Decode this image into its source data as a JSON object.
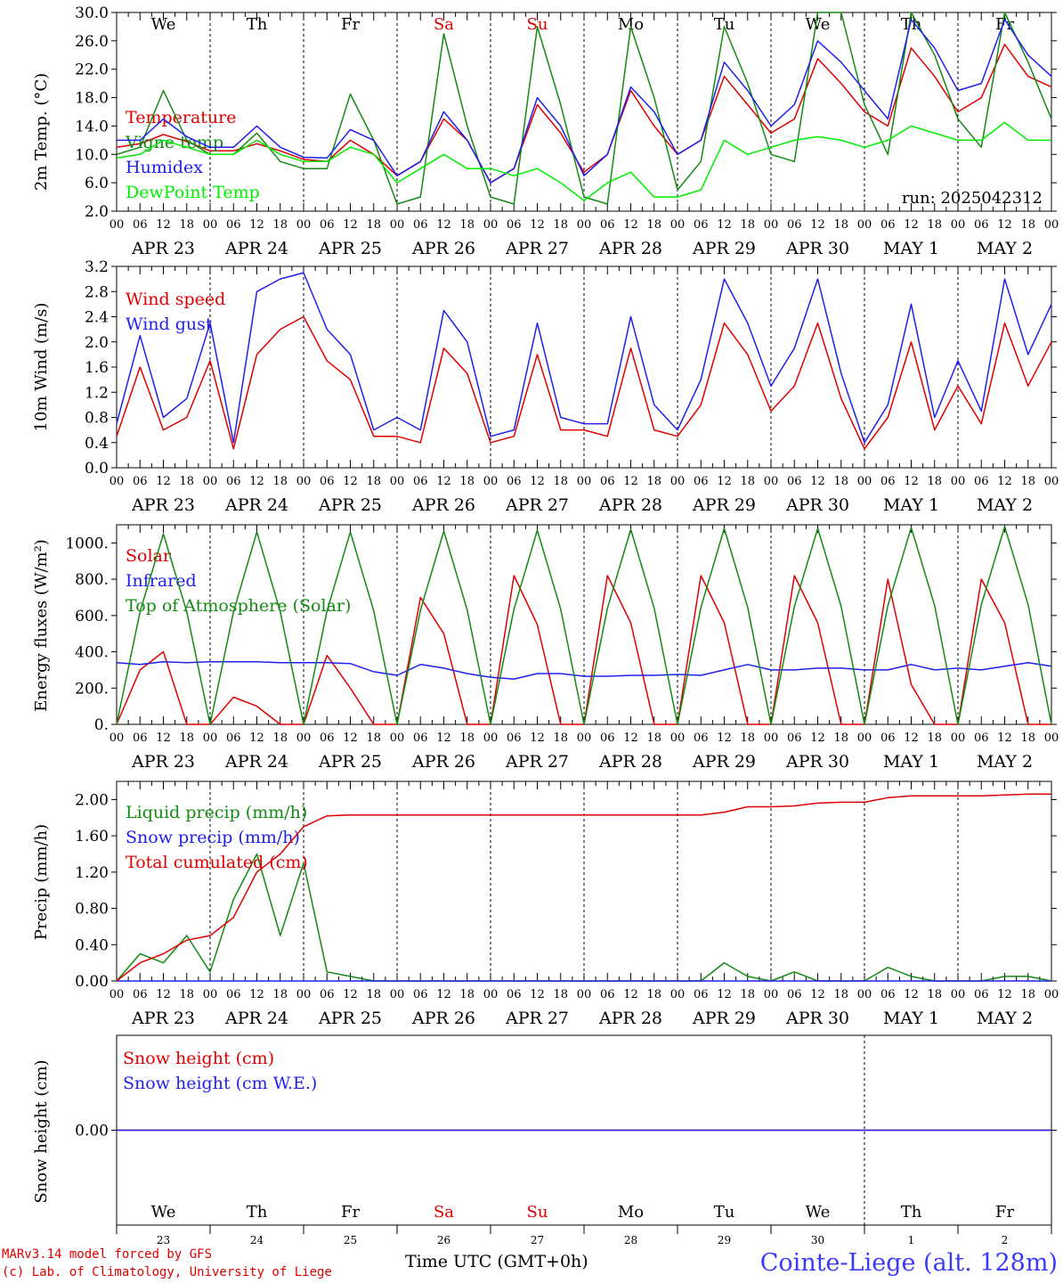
{
  "footer": {
    "model": "MARv3.14 model forced by GFS",
    "lab": "(c) Lab. of Climatology, University of Liege",
    "time_label": "Time UTC (GMT+0h)",
    "station": "Cointe-Liege (alt. 128m)"
  },
  "run_label": "run: 2025042312",
  "days": [
    "We",
    "Th",
    "Fr",
    "Sa",
    "Su",
    "Mo",
    "Tu",
    "We",
    "Th",
    "Fr"
  ],
  "day_colors": [
    "#000000",
    "#000000",
    "#000000",
    "#e00000",
    "#e00000",
    "#000000",
    "#000000",
    "#000000",
    "#000000",
    "#000000"
  ],
  "date_labels": [
    "APR 23",
    "APR 24",
    "APR 25",
    "APR 26",
    "APR 27",
    "APR 28",
    "APR 29",
    "APR 30",
    "MAY  1",
    "MAY  2"
  ],
  "day_numbers": [
    "23",
    "24",
    "25",
    "26",
    "27",
    "28",
    "29",
    "30",
    "1",
    "2"
  ],
  "hour_ticks": [
    "00",
    "06",
    "12",
    "18"
  ],
  "chart_data": [
    {
      "type": "line",
      "id": "temperature",
      "ylabel": "2m Temp. (°C)",
      "ylim": [
        2,
        30
      ],
      "yticks": [
        "2.0",
        "6.0",
        "10.0",
        "14.0",
        "18.0",
        "22.0",
        "26.0",
        "30.0"
      ],
      "x": "hours since APR 23 00 UTC, step 6",
      "series": [
        {
          "name": "Temperature",
          "color": "#e00000",
          "values": [
            11,
            11.5,
            12.8,
            11.8,
            10.5,
            10.5,
            11.5,
            10.5,
            9.3,
            9.0,
            12.0,
            10.0,
            7.0,
            9.0,
            15.0,
            12.0,
            6.0,
            8.0,
            17.0,
            13.0,
            7.5,
            10.0,
            19.0,
            14.0,
            10.0,
            12.0,
            21.0,
            17.0,
            13.0,
            15.0,
            23.5,
            20.0,
            16.0,
            14.0,
            25.0,
            21.0,
            16.0,
            18.0,
            25.5,
            21.0,
            19.5
          ]
        },
        {
          "name": "Vigne temp",
          "color": "#138a13",
          "values": [
            10,
            11,
            19,
            12,
            10,
            10,
            13,
            9,
            8.0,
            8,
            18.5,
            12,
            3,
            4,
            27,
            14,
            4,
            3,
            28,
            17,
            4,
            3,
            28,
            18,
            5,
            9,
            28,
            20,
            10,
            9,
            30,
            30,
            17,
            10,
            30,
            24,
            15,
            11,
            30,
            23,
            15
          ]
        },
        {
          "name": "Humidex",
          "color": "#2020ee",
          "values": [
            12,
            12,
            15,
            12.5,
            11,
            11,
            14,
            11,
            9.6,
            9.5,
            13.5,
            12,
            7,
            9,
            16,
            12,
            6,
            8,
            18,
            14,
            7,
            10,
            19.5,
            16,
            10,
            12,
            23,
            19,
            14,
            17,
            26,
            23,
            19,
            15,
            29,
            25,
            19,
            20,
            29,
            24,
            21
          ]
        },
        {
          "name": "DewPoint Temp",
          "color": "#00ee00",
          "values": [
            9.5,
            10,
            12,
            11,
            10,
            10,
            12,
            10,
            9,
            9,
            11,
            10,
            6,
            8,
            10,
            8,
            8,
            7,
            8,
            6,
            3.5,
            6,
            7.5,
            4,
            4,
            5,
            12,
            10,
            11,
            12,
            12.5,
            12,
            11,
            12,
            14,
            13,
            12,
            12,
            14.5,
            12,
            12
          ]
        }
      ]
    },
    {
      "type": "line",
      "id": "wind",
      "ylabel": "10m Wind (m/s)",
      "ylim": [
        0,
        3.2
      ],
      "yticks": [
        "0.0",
        "0.4",
        "0.8",
        "1.2",
        "1.6",
        "2.0",
        "2.4",
        "2.8",
        "3.2"
      ],
      "series": [
        {
          "name": "Wind speed",
          "color": "#e00000",
          "values": [
            0.5,
            1.6,
            0.6,
            0.8,
            1.7,
            0.3,
            1.8,
            2.2,
            2.4,
            1.7,
            1.4,
            0.5,
            0.5,
            0.4,
            1.9,
            1.5,
            0.4,
            0.5,
            1.8,
            0.6,
            0.6,
            0.5,
            1.9,
            0.6,
            0.5,
            1.0,
            2.3,
            1.8,
            0.9,
            1.3,
            2.3,
            1.1,
            0.3,
            0.8,
            2.0,
            0.6,
            1.3,
            0.7,
            2.3,
            1.3,
            2.0
          ]
        },
        {
          "name": "Wind gust",
          "color": "#2020ee",
          "values": [
            0.7,
            2.1,
            0.8,
            1.1,
            2.3,
            0.4,
            2.8,
            3.0,
            3.1,
            2.2,
            1.8,
            0.6,
            0.8,
            0.6,
            2.5,
            2.0,
            0.5,
            0.6,
            2.3,
            0.8,
            0.7,
            0.7,
            2.4,
            1.0,
            0.6,
            1.4,
            3.0,
            2.3,
            1.3,
            1.9,
            3.0,
            1.5,
            0.4,
            1.0,
            2.6,
            0.8,
            1.7,
            0.9,
            3.0,
            1.8,
            2.6
          ]
        }
      ]
    },
    {
      "type": "line",
      "id": "energy",
      "ylabel": "Energy fluxes (W/m²)",
      "ylim": [
        0,
        1100
      ],
      "yticks": [
        "0.",
        "200.",
        "400.",
        "600.",
        "800.",
        "1000."
      ],
      "series": [
        {
          "name": "Solar",
          "color": "#e00000",
          "values": [
            0,
            300,
            400,
            0,
            0,
            150,
            100,
            0,
            0,
            380,
            200,
            0,
            0,
            700,
            500,
            0,
            0,
            820,
            550,
            0,
            0,
            820,
            560,
            0,
            0,
            820,
            560,
            0,
            0,
            820,
            560,
            0,
            0,
            800,
            220,
            0,
            0,
            800,
            560,
            0,
            0
          ]
        },
        {
          "name": "Infrared",
          "color": "#2020ee",
          "values": [
            340,
            330,
            345,
            340,
            345,
            345,
            345,
            340,
            340,
            340,
            335,
            290,
            270,
            330,
            310,
            280,
            260,
            250,
            280,
            280,
            265,
            265,
            270,
            270,
            275,
            270,
            300,
            330,
            300,
            300,
            310,
            310,
            300,
            300,
            330,
            300,
            310,
            300,
            320,
            340,
            320
          ]
        },
        {
          "name": "Top of Atmosphere (Solar)",
          "color": "#138a13",
          "values": [
            0,
            620,
            1050,
            620,
            0,
            620,
            1060,
            620,
            0,
            625,
            1060,
            625,
            0,
            630,
            1065,
            630,
            0,
            635,
            1070,
            635,
            0,
            640,
            1075,
            640,
            0,
            645,
            1080,
            645,
            0,
            650,
            1080,
            650,
            0,
            655,
            1085,
            655,
            0,
            660,
            1090,
            660,
            0
          ]
        }
      ]
    },
    {
      "type": "line",
      "id": "precip",
      "ylabel": "Precip (mm/h)",
      "ylim": [
        0,
        2.2
      ],
      "yticks": [
        "0.00",
        "0.40",
        "0.80",
        "1.20",
        "1.60",
        "2.00"
      ],
      "series": [
        {
          "name": "Liquid precip (mm/h)",
          "color": "#138a13",
          "values": [
            0,
            0.3,
            0.2,
            0.5,
            0.1,
            0.9,
            1.4,
            0.5,
            1.3,
            0.1,
            0.05,
            0,
            0,
            0,
            0,
            0,
            0,
            0,
            0,
            0,
            0,
            0,
            0,
            0,
            0,
            0,
            0.2,
            0.05,
            0,
            0.1,
            0,
            0,
            0,
            0.15,
            0.05,
            0,
            0,
            0,
            0.05,
            0.05,
            0
          ]
        },
        {
          "name": "Snow precip (mm/h)",
          "color": "#2020ee",
          "values": [
            0,
            0,
            0,
            0,
            0,
            0,
            0,
            0,
            0,
            0,
            0,
            0,
            0,
            0,
            0,
            0,
            0,
            0,
            0,
            0,
            0,
            0,
            0,
            0,
            0,
            0,
            0,
            0,
            0,
            0,
            0,
            0,
            0,
            0,
            0,
            0,
            0,
            0,
            0,
            0,
            0
          ]
        },
        {
          "name": "Total cumulated (cm)",
          "color": "#e00000",
          "values": [
            0,
            0.2,
            0.3,
            0.45,
            0.5,
            0.7,
            1.2,
            1.4,
            1.7,
            1.82,
            1.83,
            1.83,
            1.83,
            1.83,
            1.83,
            1.83,
            1.83,
            1.83,
            1.83,
            1.83,
            1.83,
            1.83,
            1.83,
            1.83,
            1.83,
            1.83,
            1.86,
            1.92,
            1.92,
            1.93,
            1.96,
            1.97,
            1.97,
            2.02,
            2.04,
            2.04,
            2.04,
            2.04,
            2.05,
            2.06,
            2.06
          ]
        }
      ]
    },
    {
      "type": "line",
      "id": "snow",
      "ylabel": "Snow height (cm)",
      "ylim": [
        -1,
        1
      ],
      "yticks": [
        "0.00"
      ],
      "series": [
        {
          "name": "Snow height (cm)",
          "color": "#e00000",
          "values": [
            0,
            0,
            0,
            0,
            0,
            0,
            0,
            0,
            0,
            0,
            0,
            0,
            0,
            0,
            0,
            0,
            0,
            0,
            0,
            0,
            0,
            0,
            0,
            0,
            0,
            0,
            0,
            0,
            0,
            0,
            0,
            0,
            0,
            0,
            0,
            0,
            0,
            0,
            0,
            0,
            0
          ]
        },
        {
          "name": "Snow height (cm W.E.)",
          "color": "#2020ee",
          "values": [
            0,
            0,
            0,
            0,
            0,
            0,
            0,
            0,
            0,
            0,
            0,
            0,
            0,
            0,
            0,
            0,
            0,
            0,
            0,
            0,
            0,
            0,
            0,
            0,
            0,
            0,
            0,
            0,
            0,
            0,
            0,
            0,
            0,
            0,
            0,
            0,
            0,
            0,
            0,
            0,
            0
          ]
        }
      ]
    }
  ]
}
